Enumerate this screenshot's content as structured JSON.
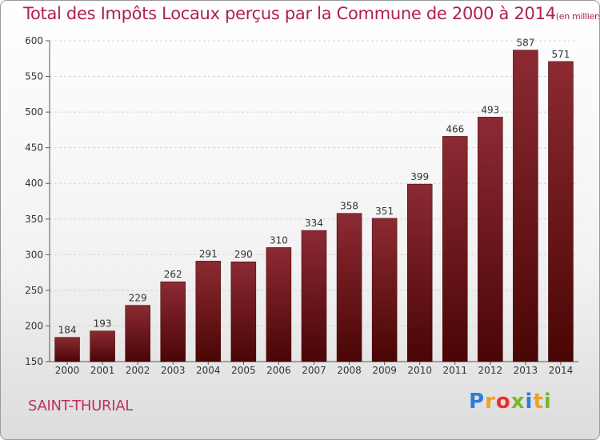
{
  "chart_data": {
    "type": "bar",
    "title": "Total des Impôts Locaux perçus par la Commune de 2000 à 2014",
    "unit_note": "(en milliers d'€)",
    "categories": [
      "2000",
      "2001",
      "2002",
      "2003",
      "2004",
      "2005",
      "2006",
      "2007",
      "2008",
      "2009",
      "2010",
      "2011",
      "2012",
      "2013",
      "2014"
    ],
    "values": [
      184,
      193,
      229,
      262,
      291,
      290,
      310,
      334,
      358,
      351,
      399,
      466,
      493,
      587,
      571
    ],
    "ylim": [
      150,
      600
    ],
    "yticks": [
      150,
      200,
      250,
      300,
      350,
      400,
      450,
      500,
      550,
      600
    ],
    "xlabel": "",
    "ylabel": "",
    "grid": true,
    "bar_color": "#7a1a22"
  },
  "commune": "SAINT-THURIAL",
  "logo": {
    "letters": [
      "P",
      "r",
      "o",
      "x",
      "i",
      "t",
      "i"
    ],
    "colors": [
      "#2a7fd4",
      "#f0a020",
      "#e83030",
      "#7ab828",
      "#2a7fd4",
      "#f0a020",
      "#7ab828"
    ]
  }
}
